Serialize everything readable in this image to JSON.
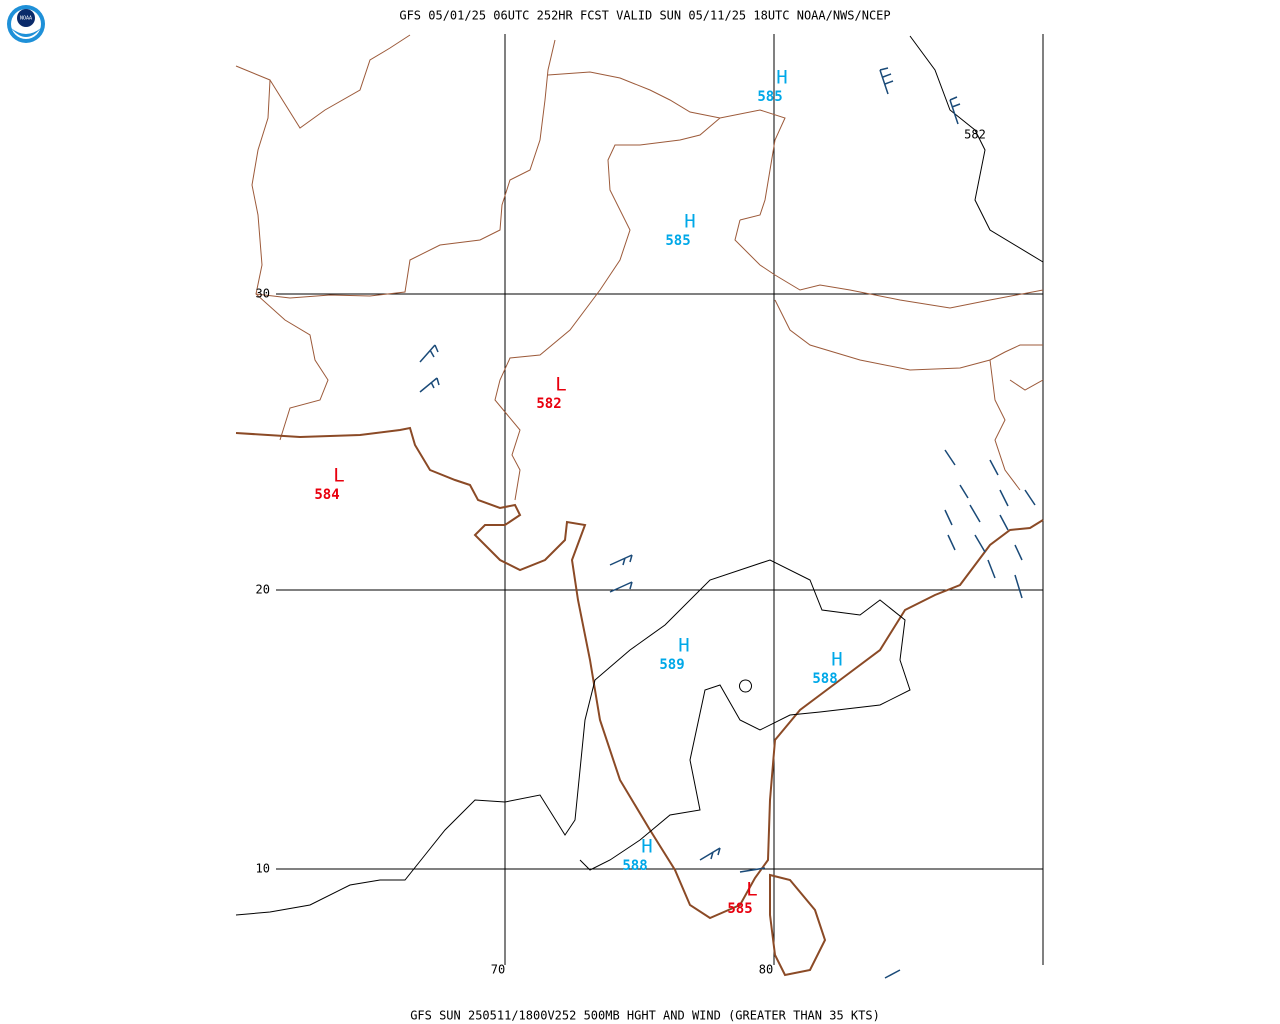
{
  "header": "GFS 05/01/25 06UTC 252HR FCST VALID SUN 05/11/25 18UTC NOAA/NWS/NCEP",
  "footer": "GFS SUN 250511/1800V252 500MB HGHT AND WIND (GREATER THAN 35 KTS)",
  "logo": "NOAA",
  "latitudes": [
    30,
    20,
    10
  ],
  "longitudes": [
    70,
    80
  ],
  "systems": [
    {
      "symbol": "H",
      "value": 585
    },
    {
      "symbol": "H",
      "value": 585
    },
    {
      "symbol": "L",
      "value": 582
    },
    {
      "symbol": "L",
      "value": 584
    },
    {
      "symbol": "H",
      "value": 589
    },
    {
      "symbol": "H",
      "value": 588
    },
    {
      "symbol": "H",
      "value": 588
    },
    {
      "symbol": "L",
      "value": 585
    }
  ],
  "contour_labels": [
    582
  ]
}
